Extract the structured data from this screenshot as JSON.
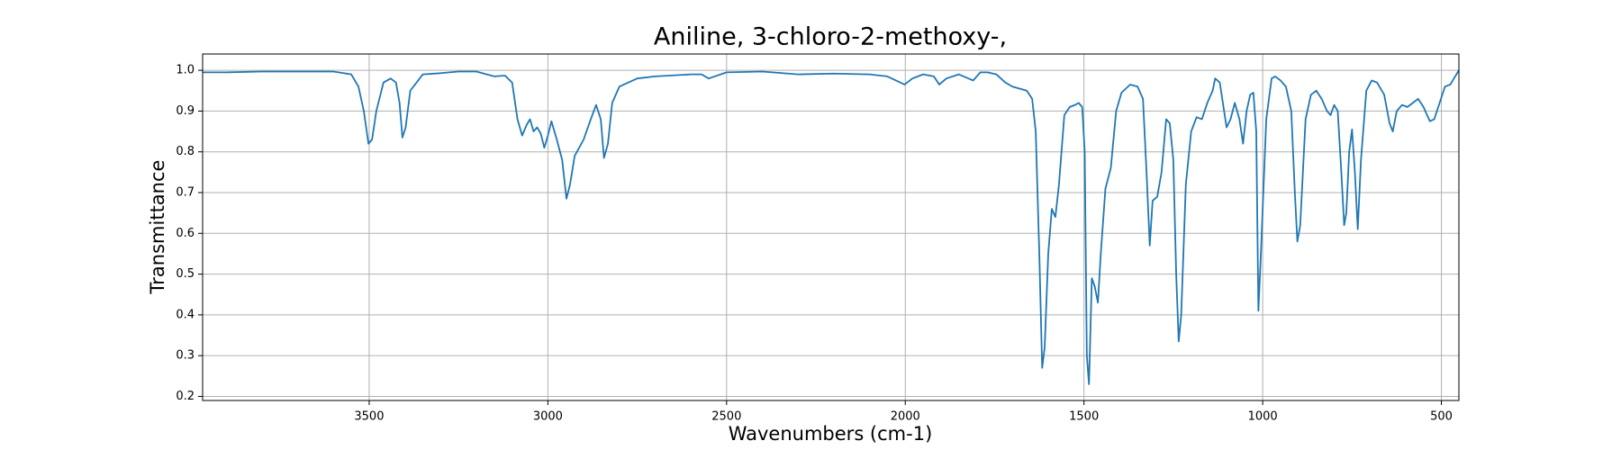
{
  "chart_data": {
    "type": "line",
    "title": "Aniline, 3-chloro-2-methoxy-,",
    "xlabel": "Wavenumbers (cm-1)",
    "ylabel": "Transmittance",
    "xlim": [
      3966,
      451
    ],
    "ylim": [
      0.19,
      1.04
    ],
    "xticks": [
      3500,
      3000,
      2500,
      2000,
      1500,
      1000,
      500
    ],
    "yticks": [
      0.2,
      0.3,
      0.4,
      0.5,
      0.6,
      0.7,
      0.8,
      0.9,
      {
        "value": 1.0,
        "label": "1.0"
      }
    ],
    "grid": true,
    "x": [
      3966,
      3900,
      3800,
      3700,
      3600,
      3550,
      3530,
      3515,
      3502,
      3492,
      3480,
      3460,
      3440,
      3425,
      3415,
      3407,
      3398,
      3385,
      3350,
      3300,
      3250,
      3200,
      3150,
      3120,
      3100,
      3085,
      3072,
      3060,
      3050,
      3040,
      3030,
      3020,
      3010,
      3000,
      2990,
      2975,
      2960,
      2948,
      2938,
      2925,
      2900,
      2880,
      2865,
      2852,
      2843,
      2832,
      2820,
      2800,
      2750,
      2700,
      2600,
      2570,
      2550,
      2500,
      2400,
      2300,
      2200,
      2100,
      2050,
      2002,
      1980,
      1950,
      1920,
      1905,
      1885,
      1850,
      1810,
      1790,
      1770,
      1745,
      1720,
      1700,
      1680,
      1660,
      1645,
      1635,
      1625,
      1617,
      1610,
      1600,
      1590,
      1580,
      1570,
      1555,
      1540,
      1525,
      1515,
      1505,
      1498,
      1492,
      1486,
      1478,
      1470,
      1461,
      1453,
      1440,
      1425,
      1410,
      1395,
      1371,
      1350,
      1335,
      1325,
      1316,
      1308,
      1295,
      1283,
      1270,
      1260,
      1250,
      1242,
      1235,
      1228,
      1215,
      1200,
      1185,
      1170,
      1155,
      1140,
      1133,
      1120,
      1101,
      1090,
      1078,
      1065,
      1055,
      1045,
      1035,
      1026,
      1018,
      1012,
      1005,
      990,
      975,
      965,
      950,
      935,
      920,
      910,
      903,
      895,
      880,
      865,
      850,
      835,
      820,
      810,
      800,
      790,
      780,
      772,
      766,
      758,
      750,
      742,
      734,
      725,
      710,
      695,
      680,
      660,
      645,
      636,
      625,
      610,
      595,
      580,
      565,
      550,
      540,
      532,
      520,
      505,
      490,
      475,
      465,
      451
    ],
    "series": [
      {
        "name": "Aniline, 3-chloro-2-methoxy-,",
        "color": "#1f77b4",
        "values": [
          0.995,
          0.995,
          0.997,
          0.997,
          0.997,
          0.99,
          0.96,
          0.9,
          0.82,
          0.83,
          0.9,
          0.97,
          0.98,
          0.97,
          0.92,
          0.835,
          0.86,
          0.95,
          0.99,
          0.993,
          0.997,
          0.997,
          0.985,
          0.987,
          0.97,
          0.88,
          0.84,
          0.865,
          0.88,
          0.85,
          0.86,
          0.845,
          0.81,
          0.84,
          0.875,
          0.83,
          0.78,
          0.685,
          0.72,
          0.79,
          0.83,
          0.88,
          0.915,
          0.88,
          0.785,
          0.82,
          0.92,
          0.96,
          0.98,
          0.985,
          0.99,
          0.99,
          0.98,
          0.995,
          0.997,
          0.99,
          0.992,
          0.99,
          0.985,
          0.965,
          0.98,
          0.99,
          0.985,
          0.965,
          0.98,
          0.99,
          0.975,
          0.995,
          0.995,
          0.99,
          0.97,
          0.96,
          0.955,
          0.95,
          0.93,
          0.85,
          0.55,
          0.27,
          0.32,
          0.55,
          0.66,
          0.64,
          0.72,
          0.89,
          0.91,
          0.915,
          0.92,
          0.91,
          0.8,
          0.3,
          0.23,
          0.49,
          0.47,
          0.43,
          0.55,
          0.71,
          0.76,
          0.9,
          0.945,
          0.965,
          0.96,
          0.93,
          0.75,
          0.57,
          0.68,
          0.69,
          0.75,
          0.88,
          0.87,
          0.78,
          0.5,
          0.335,
          0.4,
          0.72,
          0.85,
          0.885,
          0.88,
          0.92,
          0.95,
          0.98,
          0.97,
          0.86,
          0.88,
          0.92,
          0.88,
          0.82,
          0.9,
          0.94,
          0.945,
          0.85,
          0.41,
          0.55,
          0.88,
          0.98,
          0.985,
          0.975,
          0.96,
          0.9,
          0.7,
          0.58,
          0.62,
          0.88,
          0.94,
          0.95,
          0.93,
          0.9,
          0.89,
          0.915,
          0.9,
          0.75,
          0.62,
          0.65,
          0.8,
          0.855,
          0.75,
          0.61,
          0.78,
          0.95,
          0.975,
          0.97,
          0.94,
          0.87,
          0.85,
          0.9,
          0.915,
          0.91,
          0.92,
          0.93,
          0.91,
          0.89,
          0.875,
          0.88,
          0.92,
          0.96,
          0.965,
          0.98,
          1.0
        ]
      }
    ]
  }
}
